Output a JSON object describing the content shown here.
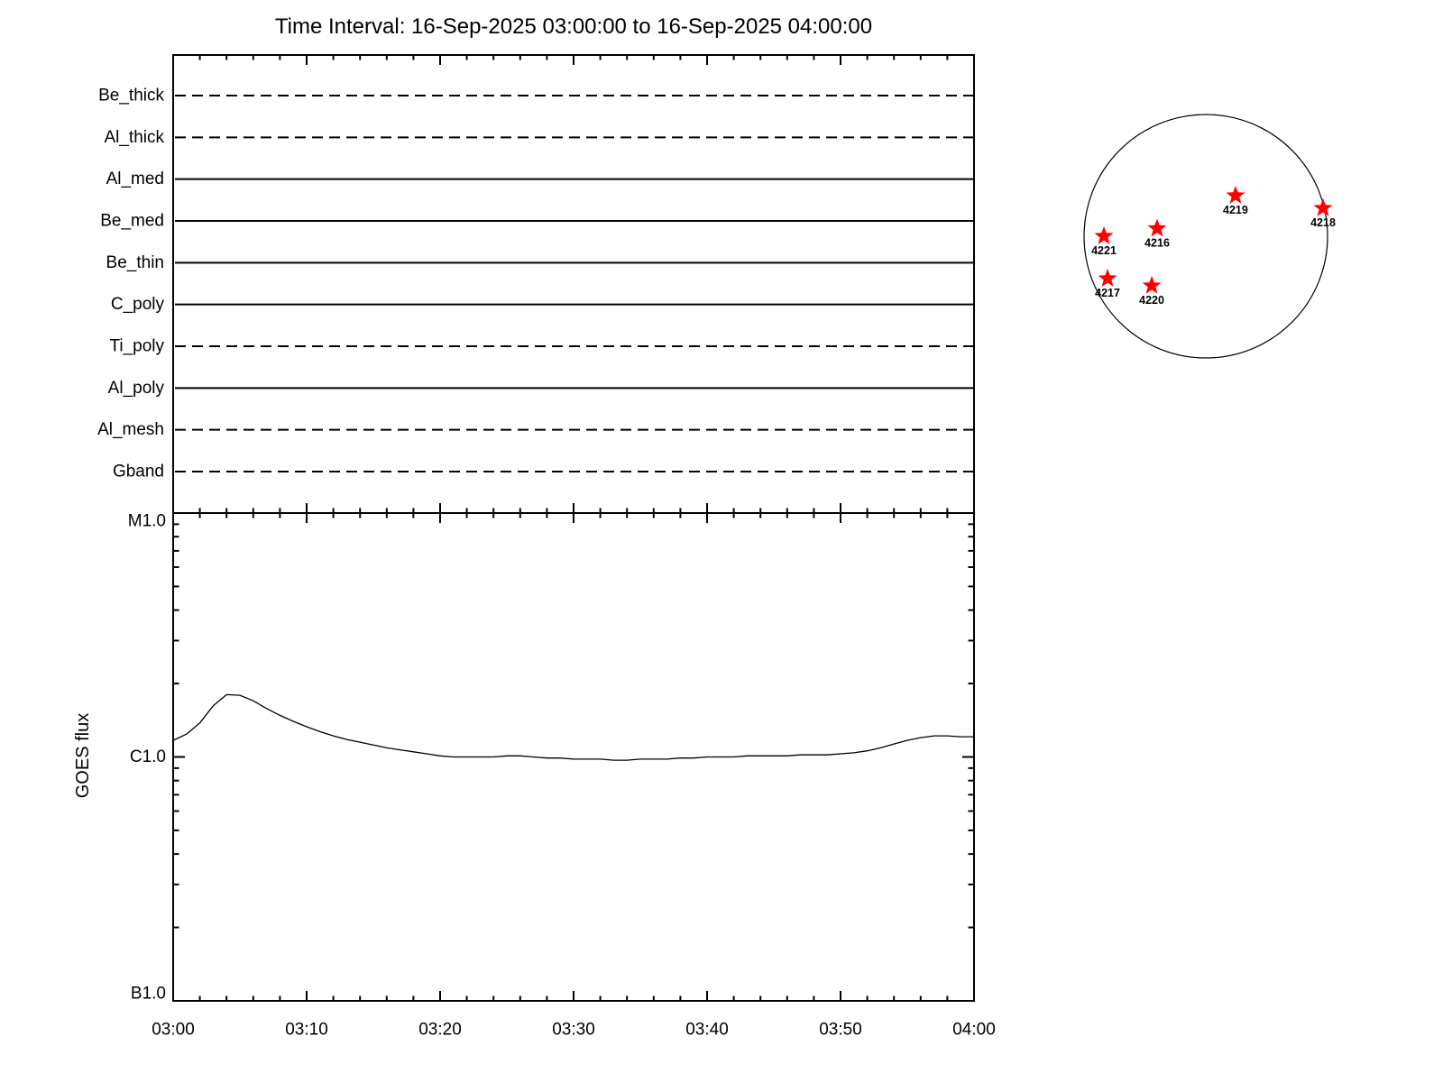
{
  "title": "Time Interval: 16-Sep-2025 03:00:00 to 16-Sep-2025 04:00:00",
  "colors": {
    "axis": "#000000",
    "text": "#000000",
    "curve": "#000000",
    "disk_outline": "#000000",
    "star": "#ff0000",
    "background": "#ffffff"
  },
  "chart_data": [
    {
      "type": "line",
      "panel": "xrt-filter-timeline",
      "description": "Per-filter horizontal status lines spanning the whole time interval",
      "categories": [
        "Be_thick",
        "Al_thick",
        "Al_med",
        "Be_med",
        "Be_thin",
        "C_poly",
        "Ti_poly",
        "Al_poly",
        "Al_mesh",
        "Gband"
      ],
      "line_styles": [
        "dashed",
        "dashed",
        "solid",
        "solid",
        "solid",
        "solid",
        "dashed",
        "solid",
        "dashed",
        "dashed"
      ],
      "x_axis": {
        "start_label": "03:00",
        "end_label": "04:00",
        "duration_minutes": 60,
        "major_tick_minutes": 10,
        "minor_tick_minutes": 2
      },
      "grid": false,
      "legend": "none"
    },
    {
      "type": "line",
      "panel": "goes-flux",
      "ylabel": "GOES flux",
      "yscale": "log",
      "ylim_wm2": [
        1e-07,
        1e-05
      ],
      "ytick_labels": [
        "M1.0",
        "C1.0",
        "B1.0"
      ],
      "yticks_wm2": [
        1e-05,
        1e-06,
        1e-07
      ],
      "xtick_labels": [
        "03:00",
        "03:10",
        "03:20",
        "03:30",
        "03:40",
        "03:50",
        "04:00"
      ],
      "xtick_minutes": [
        0,
        10,
        20,
        30,
        40,
        50,
        60
      ],
      "minor_tick_minutes": 2,
      "x_minutes": [
        0,
        1,
        2,
        3,
        4,
        5,
        6,
        7,
        8,
        9,
        10,
        11,
        12,
        13,
        14,
        15,
        16,
        17,
        18,
        19,
        20,
        21,
        22,
        23,
        24,
        25,
        26,
        27,
        28,
        29,
        30,
        31,
        32,
        33,
        34,
        35,
        36,
        37,
        38,
        39,
        40,
        41,
        42,
        43,
        44,
        45,
        46,
        47,
        48,
        49,
        50,
        51,
        52,
        53,
        54,
        55,
        56,
        57,
        58,
        59,
        60
      ],
      "flux_c_units": [
        1.17,
        1.24,
        1.38,
        1.62,
        1.8,
        1.79,
        1.7,
        1.58,
        1.48,
        1.4,
        1.33,
        1.27,
        1.22,
        1.18,
        1.15,
        1.12,
        1.09,
        1.07,
        1.05,
        1.03,
        1.01,
        1.0,
        1.0,
        1.0,
        1.0,
        1.01,
        1.01,
        1.0,
        0.99,
        0.99,
        0.98,
        0.98,
        0.98,
        0.97,
        0.97,
        0.98,
        0.98,
        0.98,
        0.99,
        0.99,
        1.0,
        1.0,
        1.0,
        1.01,
        1.01,
        1.01,
        1.01,
        1.02,
        1.02,
        1.02,
        1.03,
        1.04,
        1.06,
        1.09,
        1.13,
        1.17,
        1.2,
        1.22,
        1.22,
        1.21,
        1.21
      ],
      "flux_unit_note": "flux_c_units are in units of 1e-6 W/m^2 (C-class = 1.0)",
      "grid": false,
      "legend": "none"
    },
    {
      "type": "scatter",
      "panel": "solar-disk-active-regions",
      "marker": "star",
      "points": [
        {
          "label": "4221",
          "dx": -0.837,
          "dy": 0.0
        },
        {
          "label": "4216",
          "dx": -0.4,
          "dy": 0.063
        },
        {
          "label": "4219",
          "dx": 0.244,
          "dy": 0.333
        },
        {
          "label": "4218",
          "dx": 0.963,
          "dy": 0.23
        },
        {
          "label": "4217",
          "dx": -0.807,
          "dy": -0.348
        },
        {
          "label": "4220",
          "dx": -0.444,
          "dy": -0.407
        }
      ],
      "point_note": "dx,dy are offsets from disk centre in units of disk radius (dy positive = up/north)"
    }
  ]
}
